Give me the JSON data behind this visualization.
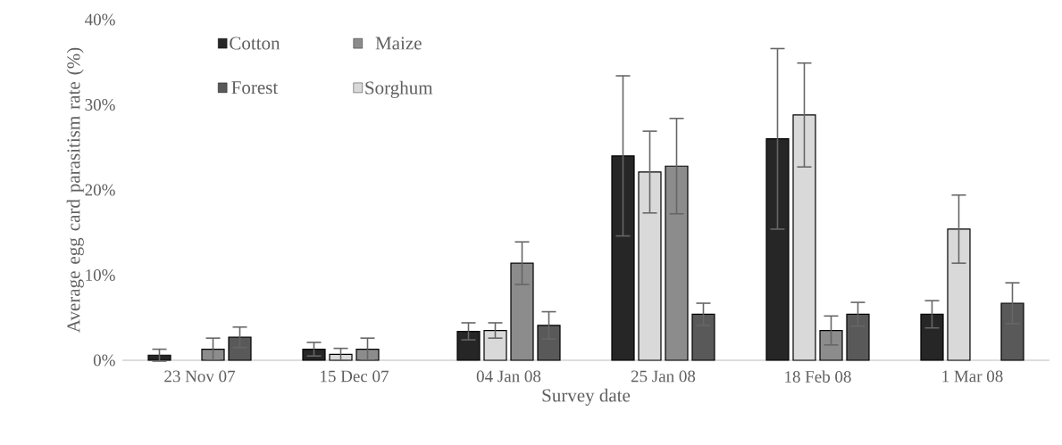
{
  "chart_data": {
    "type": "bar",
    "xlabel": "Survey date",
    "ylabel": "Average egg card parasitism rate (%)",
    "categories": [
      "23 Nov 07",
      "15 Dec 07",
      "04 Jan 08",
      "25 Jan 08",
      "18 Feb 08",
      "1 Mar 08"
    ],
    "series": [
      {
        "name": "Cotton",
        "color": "#262626",
        "values": [
          0.6,
          1.3,
          3.4,
          24.0,
          26.0,
          5.4
        ],
        "errors": [
          0.7,
          0.8,
          1.0,
          9.4,
          10.6,
          1.6
        ]
      },
      {
        "name": "Sorghum",
        "color": "#d9d9d9",
        "values": [
          null,
          0.7,
          3.5,
          22.1,
          28.8,
          15.4
        ],
        "errors": [
          null,
          0.7,
          0.9,
          4.8,
          6.1,
          4.0
        ]
      },
      {
        "name": "Maize",
        "color": "#8c8c8c",
        "values": [
          1.3,
          1.3,
          11.4,
          22.8,
          3.5,
          null
        ],
        "errors": [
          1.3,
          1.3,
          2.5,
          5.6,
          1.7,
          null
        ]
      },
      {
        "name": "Forest",
        "color": "#595959",
        "values": [
          2.7,
          null,
          4.1,
          5.4,
          5.4,
          6.7
        ],
        "errors": [
          1.2,
          null,
          1.6,
          1.3,
          1.4,
          2.4
        ]
      }
    ],
    "ylim": [
      0,
      40
    ],
    "yticks": [
      {
        "value": 0,
        "label": "0%"
      },
      {
        "value": 10,
        "label": "10%"
      },
      {
        "value": 20,
        "label": "20%"
      },
      {
        "value": 30,
        "label": "30%"
      },
      {
        "value": 40,
        "label": "40%"
      }
    ],
    "legend": "top left"
  }
}
